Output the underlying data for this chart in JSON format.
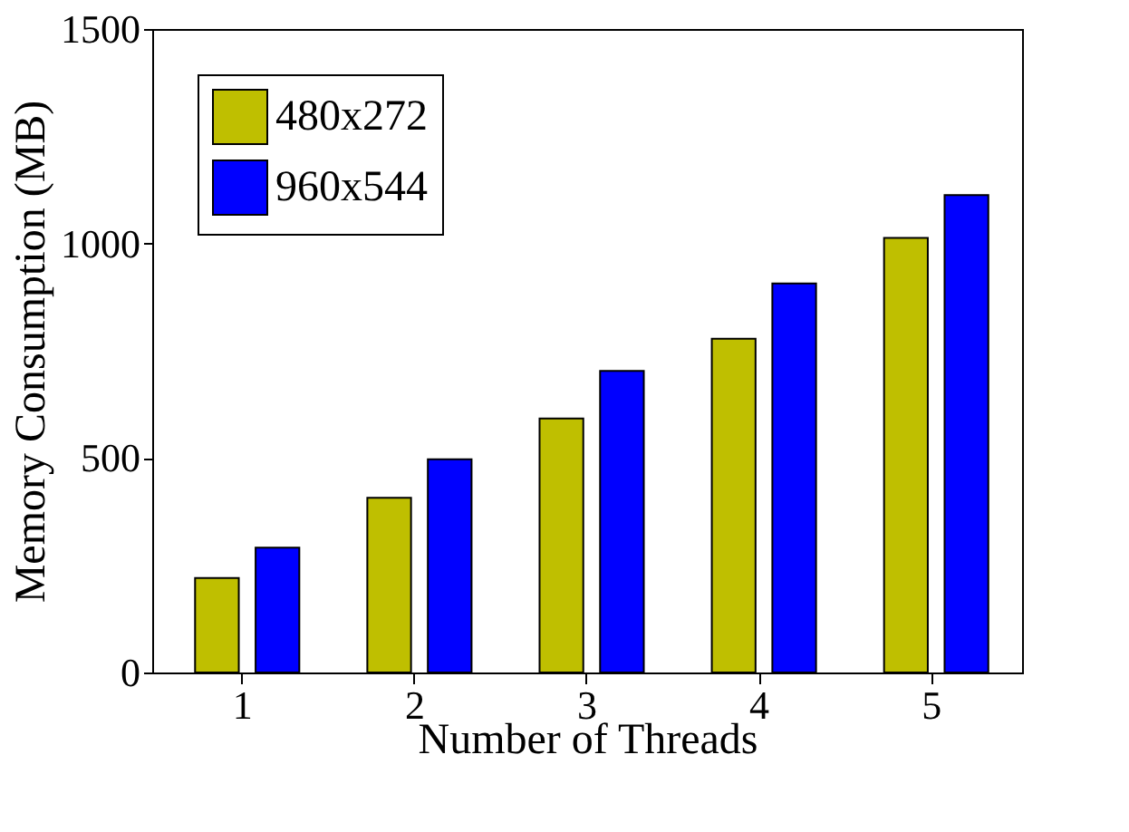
{
  "chart_data": {
    "type": "bar",
    "xlabel": "Number of Threads",
    "ylabel": "Memory Consumption (MB)",
    "categories": [
      "1",
      "2",
      "3",
      "4",
      "5"
    ],
    "series": [
      {
        "name": "480x272",
        "color": "#bfbf00",
        "values": [
          220,
          407,
          592,
          778,
          1013
        ]
      },
      {
        "name": "960x544",
        "color": "#0000ff",
        "values": [
          291,
          497,
          703,
          907,
          1113
        ]
      }
    ],
    "ylim": [
      0,
      1500
    ],
    "yticks": [
      0,
      500,
      1000,
      1500
    ],
    "grid": false,
    "legend": "top left"
  }
}
